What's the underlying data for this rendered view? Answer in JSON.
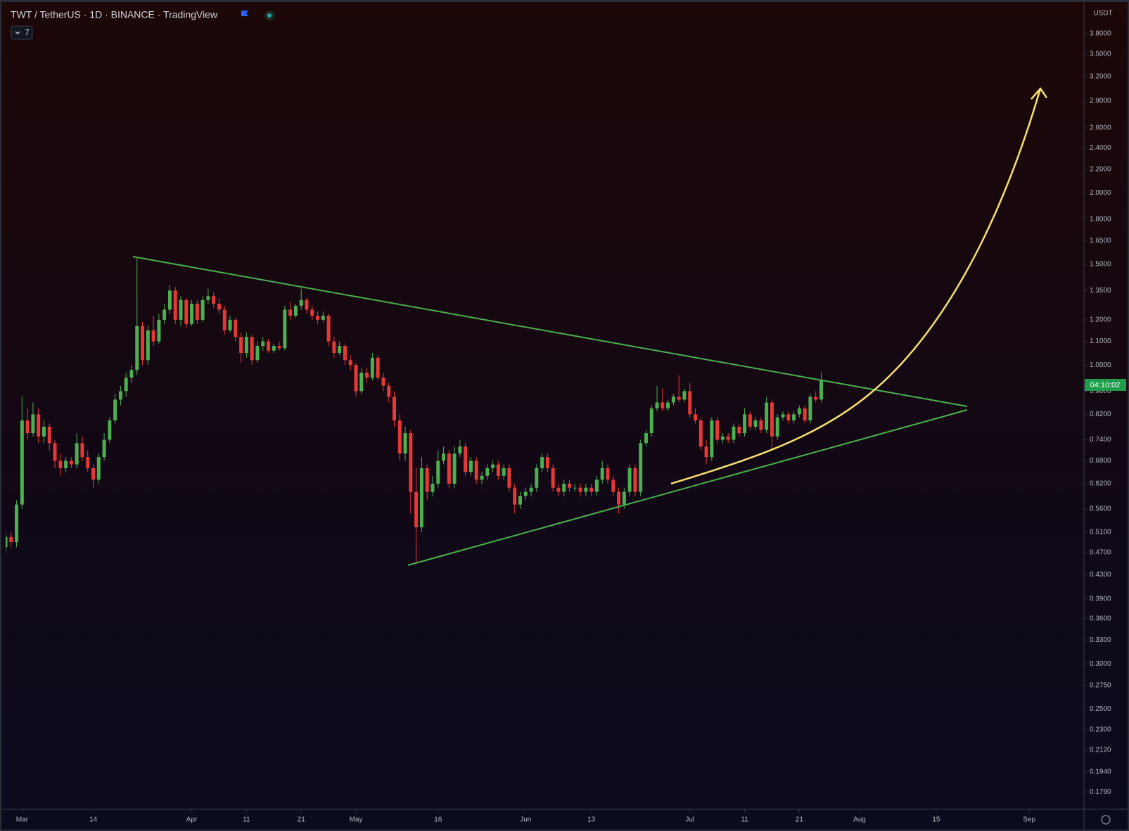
{
  "chart_data": {
    "type": "candlestick",
    "title": "TWT / TetherUS · 1D · BINANCE · TradingView",
    "hidden_indicators": 7,
    "currency": "USDT",
    "countdown": "04:10:02",
    "log_scale": true,
    "grid": false,
    "up_color": "#4caf50",
    "down_color": "#e53935",
    "xlim": [
      "Feb 26",
      "Sep 11"
    ],
    "ylim": [
      0.167,
      4.28
    ],
    "xticks": [
      {
        "value": "Mar 1",
        "label": "Mar"
      },
      {
        "value": "Mar 14",
        "label": "14"
      },
      {
        "value": "Apr 1",
        "label": "Apr"
      },
      {
        "value": "Apr 11",
        "label": "11"
      },
      {
        "value": "Apr 21",
        "label": "21"
      },
      {
        "value": "May 1",
        "label": "May"
      },
      {
        "value": "May 16",
        "label": "16"
      },
      {
        "value": "Jun 1",
        "label": "Jun"
      },
      {
        "value": "Jun 13",
        "label": "13"
      },
      {
        "value": "Jul 1",
        "label": "Jul"
      },
      {
        "value": "Jul 11",
        "label": "11"
      },
      {
        "value": "Jul 21",
        "label": "21"
      },
      {
        "value": "Aug 1",
        "label": "Aug"
      },
      {
        "value": "Aug 15",
        "label": "15"
      },
      {
        "value": "Sep 1",
        "label": "Sep"
      }
    ],
    "yticks": [
      {
        "value": 3.8,
        "label": "3.8000"
      },
      {
        "value": 3.5,
        "label": "3.5000"
      },
      {
        "value": 3.2,
        "label": "3.2000"
      },
      {
        "value": 2.9,
        "label": "2.9000"
      },
      {
        "value": 2.6,
        "label": "2.6000"
      },
      {
        "value": 2.4,
        "label": "2.4000"
      },
      {
        "value": 2.2,
        "label": "2.2000"
      },
      {
        "value": 2.0,
        "label": "2.0000"
      },
      {
        "value": 1.8,
        "label": "1.8000"
      },
      {
        "value": 1.65,
        "label": "1.6500"
      },
      {
        "value": 1.5,
        "label": "1.5000"
      },
      {
        "value": 1.35,
        "label": "1.3500"
      },
      {
        "value": 1.2,
        "label": "1.2000"
      },
      {
        "value": 1.1,
        "label": "1.1000"
      },
      {
        "value": 1.0,
        "label": "1.0000"
      },
      {
        "value": 0.9,
        "label": "0.9000"
      },
      {
        "value": 0.82,
        "label": "0.8200"
      },
      {
        "value": 0.74,
        "label": "0.7400"
      },
      {
        "value": 0.68,
        "label": "0.6800"
      },
      {
        "value": 0.62,
        "label": "0.6200"
      },
      {
        "value": 0.56,
        "label": "0.5600"
      },
      {
        "value": 0.51,
        "label": "0.5100"
      },
      {
        "value": 0.47,
        "label": "0.4700"
      },
      {
        "value": 0.43,
        "label": "0.4300"
      },
      {
        "value": 0.39,
        "label": "0.3900"
      },
      {
        "value": 0.36,
        "label": "0.3600"
      },
      {
        "value": 0.33,
        "label": "0.3300"
      },
      {
        "value": 0.3,
        "label": "0.3000"
      },
      {
        "value": 0.275,
        "label": "0.2750"
      },
      {
        "value": 0.25,
        "label": "0.2500"
      },
      {
        "value": 0.23,
        "label": "0.2300"
      },
      {
        "value": 0.212,
        "label": "0.2120"
      },
      {
        "value": 0.194,
        "label": "0.1940"
      },
      {
        "value": 0.179,
        "label": "0.1790"
      }
    ],
    "x": [
      "Feb 26",
      "Feb 27",
      "Feb 28",
      "Mar 1",
      "Mar 2",
      "Mar 3",
      "Mar 4",
      "Mar 5",
      "Mar 6",
      "Mar 7",
      "Mar 8",
      "Mar 9",
      "Mar 10",
      "Mar 11",
      "Mar 12",
      "Mar 13",
      "Mar 14",
      "Mar 15",
      "Mar 16",
      "Mar 17",
      "Mar 18",
      "Mar 19",
      "Mar 20",
      "Mar 21",
      "Mar 22",
      "Mar 23",
      "Mar 24",
      "Mar 25",
      "Mar 26",
      "Mar 27",
      "Mar 28",
      "Mar 29",
      "Mar 30",
      "Mar 31",
      "Apr 1",
      "Apr 2",
      "Apr 3",
      "Apr 4",
      "Apr 5",
      "Apr 6",
      "Apr 7",
      "Apr 8",
      "Apr 9",
      "Apr 10",
      "Apr 11",
      "Apr 12",
      "Apr 13",
      "Apr 14",
      "Apr 15",
      "Apr 16",
      "Apr 17",
      "Apr 18",
      "Apr 19",
      "Apr 20",
      "Apr 21",
      "Apr 22",
      "Apr 23",
      "Apr 24",
      "Apr 25",
      "Apr 26",
      "Apr 27",
      "Apr 28",
      "Apr 29",
      "Apr 30",
      "May 1",
      "May 2",
      "May 3",
      "May 4",
      "May 5",
      "May 6",
      "May 7",
      "May 8",
      "May 9",
      "May 10",
      "May 11",
      "May 12",
      "May 13",
      "May 14",
      "May 15",
      "May 16",
      "May 17",
      "May 18",
      "May 19",
      "May 20",
      "May 21",
      "May 22",
      "May 23",
      "May 24",
      "May 25",
      "May 26",
      "May 27",
      "May 28",
      "May 29",
      "May 30",
      "May 31",
      "Jun 1",
      "Jun 2",
      "Jun 3",
      "Jun 4",
      "Jun 5",
      "Jun 6",
      "Jun 7",
      "Jun 8",
      "Jun 9",
      "Jun 10",
      "Jun 11",
      "Jun 12",
      "Jun 13",
      "Jun 14",
      "Jun 15",
      "Jun 16",
      "Jun 17",
      "Jun 18",
      "Jun 19",
      "Jun 20",
      "Jun 21",
      "Jun 22",
      "Jun 23",
      "Jun 24",
      "Jun 25",
      "Jun 26",
      "Jun 27",
      "Jun 28",
      "Jun 29",
      "Jun 30",
      "Jul 1",
      "Jul 2",
      "Jul 3",
      "Jul 4",
      "Jul 5",
      "Jul 6",
      "Jul 7",
      "Jul 8",
      "Jul 9",
      "Jul 10",
      "Jul 11",
      "Jul 12",
      "Jul 13",
      "Jul 14",
      "Jul 15",
      "Jul 16",
      "Jul 17",
      "Jul 18",
      "Jul 19",
      "Jul 20",
      "Jul 21",
      "Jul 22",
      "Jul 23",
      "Jul 24",
      "Jul 25"
    ],
    "ohlc": [
      [
        0.48,
        0.51,
        0.47,
        0.5
      ],
      [
        0.5,
        0.51,
        0.48,
        0.49
      ],
      [
        0.49,
        0.58,
        0.48,
        0.57
      ],
      [
        0.57,
        0.88,
        0.56,
        0.8
      ],
      [
        0.8,
        0.84,
        0.74,
        0.76
      ],
      [
        0.76,
        0.86,
        0.75,
        0.82
      ],
      [
        0.82,
        0.84,
        0.73,
        0.75
      ],
      [
        0.75,
        0.8,
        0.73,
        0.78
      ],
      [
        0.78,
        0.79,
        0.71,
        0.73
      ],
      [
        0.73,
        0.74,
        0.66,
        0.68
      ],
      [
        0.68,
        0.7,
        0.64,
        0.66
      ],
      [
        0.66,
        0.69,
        0.65,
        0.68
      ],
      [
        0.68,
        0.69,
        0.66,
        0.67
      ],
      [
        0.67,
        0.76,
        0.66,
        0.73
      ],
      [
        0.73,
        0.75,
        0.68,
        0.69
      ],
      [
        0.69,
        0.71,
        0.65,
        0.66
      ],
      [
        0.66,
        0.67,
        0.61,
        0.63
      ],
      [
        0.63,
        0.7,
        0.62,
        0.69
      ],
      [
        0.69,
        0.76,
        0.68,
        0.74
      ],
      [
        0.74,
        0.81,
        0.73,
        0.8
      ],
      [
        0.8,
        0.89,
        0.79,
        0.87
      ],
      [
        0.87,
        0.92,
        0.85,
        0.9
      ],
      [
        0.9,
        0.97,
        0.88,
        0.95
      ],
      [
        0.95,
        1.0,
        0.93,
        0.98
      ],
      [
        0.98,
        1.54,
        0.96,
        1.17
      ],
      [
        1.17,
        1.19,
        1.0,
        1.02
      ],
      [
        1.02,
        1.17,
        1.0,
        1.15
      ],
      [
        1.15,
        1.22,
        1.08,
        1.1
      ],
      [
        1.1,
        1.23,
        1.09,
        1.2
      ],
      [
        1.2,
        1.28,
        1.18,
        1.25
      ],
      [
        1.25,
        1.38,
        1.23,
        1.35
      ],
      [
        1.35,
        1.37,
        1.18,
        1.2
      ],
      [
        1.2,
        1.32,
        1.17,
        1.3
      ],
      [
        1.3,
        1.31,
        1.16,
        1.18
      ],
      [
        1.18,
        1.3,
        1.17,
        1.28
      ],
      [
        1.28,
        1.3,
        1.18,
        1.2
      ],
      [
        1.2,
        1.32,
        1.19,
        1.3
      ],
      [
        1.3,
        1.36,
        1.28,
        1.32
      ],
      [
        1.32,
        1.34,
        1.26,
        1.28
      ],
      [
        1.28,
        1.31,
        1.23,
        1.25
      ],
      [
        1.25,
        1.27,
        1.13,
        1.15
      ],
      [
        1.15,
        1.22,
        1.14,
        1.2
      ],
      [
        1.2,
        1.21,
        1.1,
        1.12
      ],
      [
        1.12,
        1.14,
        1.01,
        1.05
      ],
      [
        1.05,
        1.14,
        1.03,
        1.12
      ],
      [
        1.12,
        1.13,
        1.0,
        1.02
      ],
      [
        1.02,
        1.1,
        1.01,
        1.08
      ],
      [
        1.08,
        1.12,
        1.06,
        1.1
      ],
      [
        1.1,
        1.11,
        1.05,
        1.06
      ],
      [
        1.06,
        1.09,
        1.05,
        1.08
      ],
      [
        1.08,
        1.1,
        1.06,
        1.07
      ],
      [
        1.07,
        1.27,
        1.06,
        1.25
      ],
      [
        1.25,
        1.29,
        1.2,
        1.22
      ],
      [
        1.22,
        1.28,
        1.21,
        1.27
      ],
      [
        1.27,
        1.36,
        1.25,
        1.3
      ],
      [
        1.3,
        1.31,
        1.23,
        1.25
      ],
      [
        1.25,
        1.27,
        1.2,
        1.22
      ],
      [
        1.22,
        1.24,
        1.18,
        1.2
      ],
      [
        1.2,
        1.24,
        1.19,
        1.22
      ],
      [
        1.22,
        1.23,
        1.08,
        1.1
      ],
      [
        1.1,
        1.12,
        1.03,
        1.05
      ],
      [
        1.05,
        1.1,
        1.04,
        1.08
      ],
      [
        1.08,
        1.09,
        1.0,
        1.02
      ],
      [
        1.02,
        1.04,
        0.98,
        1.0
      ],
      [
        1.0,
        1.01,
        0.88,
        0.9
      ],
      [
        0.9,
        0.99,
        0.89,
        0.97
      ],
      [
        0.97,
        0.99,
        0.93,
        0.95
      ],
      [
        0.95,
        1.05,
        0.94,
        1.03
      ],
      [
        1.03,
        1.04,
        0.94,
        0.95
      ],
      [
        0.95,
        0.97,
        0.9,
        0.92
      ],
      [
        0.92,
        0.93,
        0.86,
        0.88
      ],
      [
        0.88,
        0.9,
        0.78,
        0.8
      ],
      [
        0.8,
        0.82,
        0.68,
        0.7
      ],
      [
        0.7,
        0.78,
        0.68,
        0.76
      ],
      [
        0.76,
        0.77,
        0.55,
        0.6
      ],
      [
        0.6,
        0.66,
        0.45,
        0.52
      ],
      [
        0.52,
        0.69,
        0.51,
        0.66
      ],
      [
        0.66,
        0.67,
        0.58,
        0.6
      ],
      [
        0.6,
        0.64,
        0.59,
        0.62
      ],
      [
        0.62,
        0.71,
        0.61,
        0.68
      ],
      [
        0.68,
        0.72,
        0.67,
        0.7
      ],
      [
        0.7,
        0.71,
        0.61,
        0.62
      ],
      [
        0.62,
        0.72,
        0.61,
        0.7
      ],
      [
        0.7,
        0.74,
        0.69,
        0.72
      ],
      [
        0.72,
        0.73,
        0.64,
        0.65
      ],
      [
        0.65,
        0.69,
        0.64,
        0.68
      ],
      [
        0.68,
        0.69,
        0.62,
        0.63
      ],
      [
        0.63,
        0.65,
        0.62,
        0.64
      ],
      [
        0.64,
        0.67,
        0.63,
        0.66
      ],
      [
        0.66,
        0.68,
        0.65,
        0.67
      ],
      [
        0.67,
        0.68,
        0.63,
        0.64
      ],
      [
        0.64,
        0.67,
        0.63,
        0.66
      ],
      [
        0.66,
        0.67,
        0.6,
        0.61
      ],
      [
        0.61,
        0.62,
        0.55,
        0.57
      ],
      [
        0.57,
        0.6,
        0.56,
        0.59
      ],
      [
        0.59,
        0.61,
        0.58,
        0.6
      ],
      [
        0.6,
        0.62,
        0.59,
        0.61
      ],
      [
        0.61,
        0.67,
        0.6,
        0.66
      ],
      [
        0.66,
        0.7,
        0.65,
        0.69
      ],
      [
        0.69,
        0.7,
        0.65,
        0.66
      ],
      [
        0.66,
        0.67,
        0.6,
        0.61
      ],
      [
        0.61,
        0.62,
        0.59,
        0.6
      ],
      [
        0.6,
        0.63,
        0.59,
        0.62
      ],
      [
        0.62,
        0.63,
        0.6,
        0.61
      ],
      [
        0.61,
        0.62,
        0.6,
        0.61
      ],
      [
        0.61,
        0.62,
        0.59,
        0.6
      ],
      [
        0.6,
        0.62,
        0.59,
        0.61
      ],
      [
        0.61,
        0.62,
        0.59,
        0.6
      ],
      [
        0.6,
        0.64,
        0.59,
        0.63
      ],
      [
        0.63,
        0.68,
        0.62,
        0.66
      ],
      [
        0.66,
        0.67,
        0.62,
        0.63
      ],
      [
        0.63,
        0.64,
        0.59,
        0.6
      ],
      [
        0.6,
        0.61,
        0.55,
        0.57
      ],
      [
        0.57,
        0.61,
        0.56,
        0.6
      ],
      [
        0.6,
        0.67,
        0.59,
        0.66
      ],
      [
        0.66,
        0.67,
        0.59,
        0.6
      ],
      [
        0.6,
        0.74,
        0.59,
        0.73
      ],
      [
        0.73,
        0.77,
        0.72,
        0.76
      ],
      [
        0.76,
        0.85,
        0.75,
        0.84
      ],
      [
        0.84,
        0.92,
        0.83,
        0.86
      ],
      [
        0.86,
        0.91,
        0.83,
        0.84
      ],
      [
        0.84,
        0.87,
        0.83,
        0.86
      ],
      [
        0.86,
        0.89,
        0.85,
        0.88
      ],
      [
        0.88,
        0.96,
        0.86,
        0.87
      ],
      [
        0.87,
        0.91,
        0.86,
        0.9
      ],
      [
        0.9,
        0.93,
        0.81,
        0.82
      ],
      [
        0.82,
        0.84,
        0.79,
        0.8
      ],
      [
        0.8,
        0.81,
        0.71,
        0.72
      ],
      [
        0.72,
        0.74,
        0.67,
        0.69
      ],
      [
        0.69,
        0.81,
        0.68,
        0.8
      ],
      [
        0.8,
        0.81,
        0.73,
        0.74
      ],
      [
        0.74,
        0.76,
        0.73,
        0.75
      ],
      [
        0.75,
        0.76,
        0.73,
        0.74
      ],
      [
        0.74,
        0.79,
        0.73,
        0.78
      ],
      [
        0.78,
        0.79,
        0.75,
        0.76
      ],
      [
        0.76,
        0.84,
        0.75,
        0.82
      ],
      [
        0.82,
        0.83,
        0.77,
        0.78
      ],
      [
        0.78,
        0.81,
        0.77,
        0.8
      ],
      [
        0.8,
        0.81,
        0.76,
        0.77
      ],
      [
        0.77,
        0.88,
        0.76,
        0.86
      ],
      [
        0.86,
        0.87,
        0.71,
        0.75
      ],
      [
        0.75,
        0.82,
        0.74,
        0.81
      ],
      [
        0.81,
        0.83,
        0.8,
        0.82
      ],
      [
        0.82,
        0.83,
        0.79,
        0.8
      ],
      [
        0.8,
        0.83,
        0.79,
        0.82
      ],
      [
        0.82,
        0.85,
        0.81,
        0.84
      ],
      [
        0.84,
        0.85,
        0.79,
        0.8
      ],
      [
        0.8,
        0.89,
        0.79,
        0.88
      ],
      [
        0.88,
        0.9,
        0.86,
        0.87
      ],
      [
        0.87,
        0.97,
        0.86,
        0.94
      ]
    ]
  }
}
